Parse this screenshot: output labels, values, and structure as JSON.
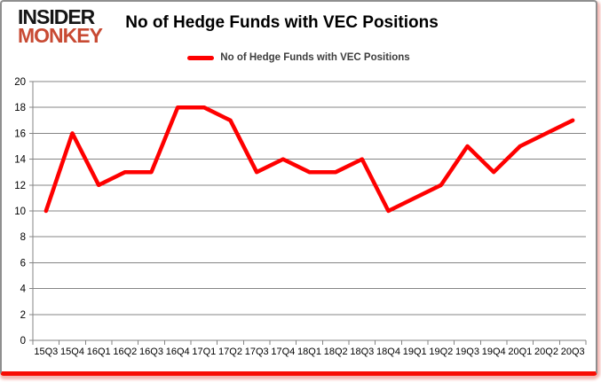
{
  "logo": {
    "line1": "INSIDER",
    "line2": "MONKEY"
  },
  "title": "No of Hedge Funds with VEC Positions",
  "legend": {
    "label": "No of Hedge Funds with VEC Positions"
  },
  "colors": {
    "line_red": "#fe0000",
    "logo_red": "#c84a33",
    "grid_gray": "#858585",
    "axis_text": "#000000",
    "legend_text": "#3d3d3d",
    "frame_border_gray": "#8f8f8f",
    "bottom_bar_red": "#f70d04",
    "shadow_pink": "#f3b7b2"
  },
  "chart_data": {
    "type": "line",
    "title": "No of Hedge Funds with VEC Positions",
    "xlabel": "",
    "ylabel": "",
    "categories": [
      "15Q3",
      "15Q4",
      "16Q1",
      "16Q2",
      "16Q3",
      "16Q4",
      "17Q1",
      "17Q2",
      "17Q3",
      "17Q4",
      "18Q1",
      "18Q2",
      "18Q3",
      "18Q4",
      "19Q1",
      "19Q2",
      "19Q3",
      "19Q4",
      "20Q1",
      "20Q2",
      "20Q3"
    ],
    "series": [
      {
        "name": "No of Hedge Funds with VEC Positions",
        "values": [
          10,
          16,
          12,
          13,
          13,
          18,
          18,
          17,
          13,
          14,
          13,
          13,
          14,
          10,
          11,
          12,
          15,
          13,
          15,
          16,
          17
        ]
      }
    ],
    "ylim": [
      0,
      20
    ],
    "yticks": [
      0,
      2,
      4,
      6,
      8,
      10,
      12,
      14,
      16,
      18,
      20
    ],
    "grid": true,
    "legend_position": "top",
    "line_color": "#fe0000",
    "grid_color": "#858585"
  }
}
